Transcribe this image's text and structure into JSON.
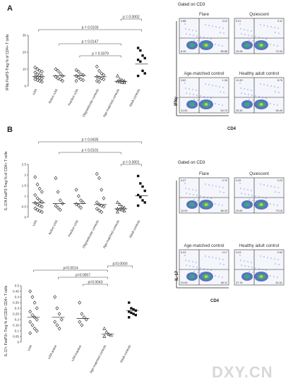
{
  "panel_a": {
    "letter": "A",
    "gated_label": "Gated on CD3",
    "flow_titles": [
      "Flare",
      "Quiescent",
      "Age-matched control",
      "Healthy adult control"
    ],
    "flow_quadrants": [
      [
        "4.88",
        "3.12",
        "6.26",
        "85.88"
      ],
      [
        "5.21",
        "3.11",
        "19.28",
        "72.43"
      ],
      [
        "3.62",
        "1.28",
        "31.50",
        "63.70"
      ],
      [
        "12.49",
        "6.76",
        "25.30",
        "55.45"
      ]
    ],
    "flow_y_axis": "IFNγ",
    "flow_x_axis": "CD4",
    "chart_data": {
      "type": "scatter",
      "ylabel": "IFNγ FoxP3-Treg % of CD4+ T cells",
      "ylim": [
        0,
        30
      ],
      "yticks": [
        "0",
        "10",
        "20",
        "30"
      ],
      "categories": [
        "sJIA",
        "Active sJIA",
        "Inactive sJIA",
        "Oligoarticular controls",
        "Age-matched controls",
        "Adult controls"
      ],
      "markers": [
        "diamond",
        "diamond",
        "diamond",
        "diamond",
        "triangle",
        "square"
      ],
      "medians": [
        5.5,
        6.0,
        6.2,
        5.5,
        2.8,
        13.0
      ],
      "values": [
        [
          11,
          10,
          9,
          8.5,
          8,
          7,
          6.5,
          6,
          5.5,
          5,
          4.8,
          4.5,
          4,
          3.5,
          3,
          2.5
        ],
        [
          10,
          9,
          7.5,
          6,
          5.5,
          4.5,
          4,
          3
        ],
        [
          9.5,
          8.5,
          7,
          6.5,
          6,
          5,
          4,
          3.5,
          3
        ],
        [
          11.5,
          9,
          7.5,
          6.5,
          5.5,
          5,
          4.5,
          4,
          3,
          2.5
        ],
        [
          6,
          4,
          3.5,
          3,
          2.7,
          2.5,
          2.2,
          2
        ],
        [
          22.5,
          21,
          18,
          16.5,
          15.5,
          14.5,
          9,
          7.5,
          6
        ]
      ],
      "comparisons": [
        {
          "label": "p = 0.0103"
        },
        {
          "label": "p = 0.0147"
        },
        {
          "label": "p = 0.0379"
        },
        {
          "label": "p = 0.0002"
        }
      ]
    }
  },
  "panel_b": {
    "letter": "B",
    "gated_label": "Gated on CD3",
    "flow_titles": [
      "Flare",
      "Quiescent",
      "Age-matched control",
      "Healthy adult control"
    ],
    "flow_quadrants": [
      [
        "0.07",
        "0.70",
        "10.90",
        "88.33"
      ],
      [
        "0.09",
        "0.23",
        "20.60",
        "79.18"
      ],
      [
        "0.03",
        "0.17",
        "24.69",
        "65.11"
      ],
      [
        "0.03",
        "0.60",
        "37.76",
        "61.61"
      ]
    ],
    "flow_y_axis": "IL-17",
    "flow_x_axis": "CD4",
    "chart_top": {
      "type": "scatter",
      "ylabel": "IL-17A FoxP3-Treg % of CD4+ T cells",
      "ylim": [
        0,
        2.5
      ],
      "yticks": [
        "0",
        "0.5",
        "1",
        "1.5",
        "2",
        "2.5"
      ],
      "categories": [
        "sJIA",
        "Active sJIA",
        "Inactive sJIA",
        "Oligoarticular controls",
        "Age-matched controls",
        "Adult controls"
      ],
      "markers": [
        "diamond",
        "diamond",
        "diamond",
        "diamond",
        "triangle",
        "square"
      ],
      "medians": [
        0.68,
        0.65,
        0.65,
        0.6,
        0.4,
        1.02
      ],
      "values": [
        [
          1.9,
          1.55,
          1.35,
          1.2,
          1.05,
          0.9,
          0.8,
          0.72,
          0.68,
          0.6,
          0.55,
          0.5,
          0.42,
          0.35,
          0.3,
          0.25
        ],
        [
          1.85,
          1.2,
          0.8,
          0.65,
          0.55,
          0.45,
          0.35
        ],
        [
          1.3,
          1.0,
          0.8,
          0.7,
          0.62,
          0.55,
          0.45
        ],
        [
          2.05,
          1.85,
          1.3,
          0.9,
          0.7,
          0.6,
          0.55,
          0.5,
          0.4,
          0.32,
          0.25
        ],
        [
          0.7,
          0.6,
          0.5,
          0.45,
          0.4,
          0.38,
          0.35,
          0.3,
          0.25
        ],
        [
          1.95,
          1.6,
          1.45,
          1.25,
          1.05,
          0.95,
          0.8,
          0.7,
          0.55
        ]
      ],
      "comparisons": [
        {
          "label": "p = 0.0435"
        },
        {
          "label": "p = 0.0101"
        },
        {
          "label": "p = 0.0001"
        }
      ]
    },
    "chart_bottom": {
      "type": "scatter",
      "ylabel": "IL-17+ FoxP3+ Treg % of CD3+ CD4+ T cells",
      "ylim": [
        0,
        0.5
      ],
      "yticks": [
        "0",
        "0.05",
        "0.1",
        "0.15",
        "0.2",
        "0.25",
        "0.3",
        "0.35",
        "0.4",
        "0.45",
        "0.5"
      ],
      "categories": [
        "sJIA",
        "sJIA active",
        "sJIA inactive",
        "Age-matched controls",
        "Adult controls"
      ],
      "markers": [
        "diamond",
        "diamond",
        "diamond",
        "triangle",
        "square"
      ],
      "medians": [
        0.22,
        0.22,
        0.21,
        0.07,
        0.28
      ],
      "values": [
        [
          0.45,
          0.4,
          0.35,
          0.3,
          0.27,
          0.24,
          0.22,
          0.2,
          0.18,
          0.15,
          0.12,
          0.1,
          0.08
        ],
        [
          0.4,
          0.3,
          0.25,
          0.2,
          0.18,
          0.15,
          0.12
        ],
        [
          0.35,
          0.25,
          0.22,
          0.2,
          0.18,
          0.15
        ],
        [
          0.12,
          0.09,
          0.07,
          0.06,
          0.05
        ],
        [
          0.35,
          0.3,
          0.29,
          0.28,
          0.27,
          0.26,
          0.25,
          0.24,
          0.22
        ]
      ],
      "comparisons": [
        {
          "label": "p=0.0014"
        },
        {
          "label": "p=0.0057"
        },
        {
          "label": "p=0.0043"
        },
        {
          "label": "p=0.0000"
        }
      ]
    }
  },
  "watermark": "DXY.CN"
}
